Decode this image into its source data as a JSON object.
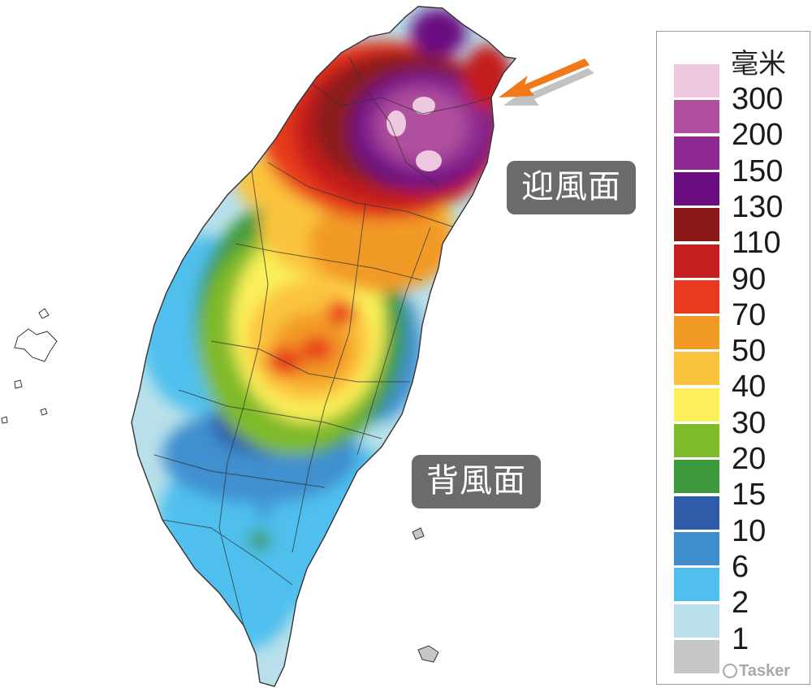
{
  "labels": {
    "windward": "迎風面",
    "leeward": "背風面"
  },
  "legend": {
    "unit": "毫米",
    "items": [
      {
        "label": "300",
        "color": "#ecc9de"
      },
      {
        "label": "200",
        "color": "#b04f9e"
      },
      {
        "label": "150",
        "color": "#8e2a91"
      },
      {
        "label": "130",
        "color": "#6a0d80"
      },
      {
        "label": "110",
        "color": "#8a1a1a"
      },
      {
        "label": "90",
        "color": "#c41e1e"
      },
      {
        "label": "70",
        "color": "#e83a1e"
      },
      {
        "label": "50",
        "color": "#f29a26"
      },
      {
        "label": "40",
        "color": "#fbc33c"
      },
      {
        "label": "30",
        "color": "#fbf05a"
      },
      {
        "label": "20",
        "color": "#7fba2b"
      },
      {
        "label": "15",
        "color": "#3c9a3c"
      },
      {
        "label": "10",
        "color": "#2f5ba8"
      },
      {
        "label": "6",
        "color": "#3f8fd0"
      },
      {
        "label": "2",
        "color": "#4fc0ee"
      },
      {
        "label": "1",
        "color": "#b9e0ea"
      },
      {
        "label": "",
        "color": "#c6c6c6"
      }
    ]
  },
  "watermark": "Tasker",
  "arrow_color": "#f07a1a"
}
